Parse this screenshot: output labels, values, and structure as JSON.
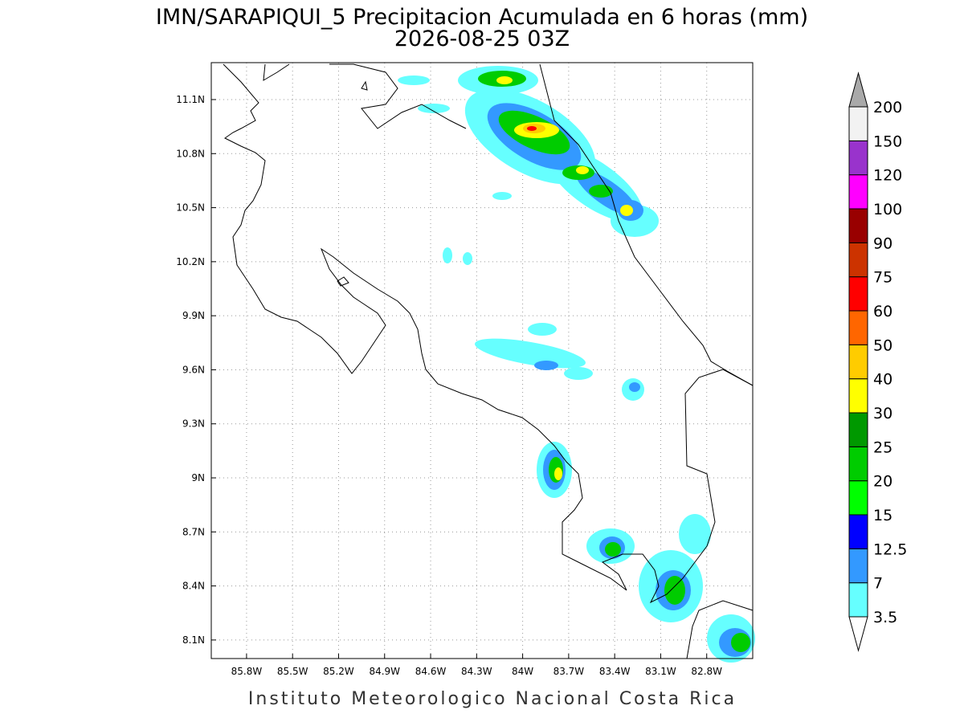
{
  "map": {
    "title": "IMN/SARAPIQUI_5 Precipitacion Acumulada en 6 horas (mm)",
    "subtitle": "2026-08-25 03Z",
    "footer": "Instituto Meteorologico Nacional Costa Rica",
    "xlim": [
      -86.03,
      -82.5
    ],
    "ylim": [
      7.997,
      11.305
    ],
    "xticks": [
      {
        "value": -85.8,
        "label": "85.8W"
      },
      {
        "value": -85.5,
        "label": "85.5W"
      },
      {
        "value": -85.2,
        "label": "85.2W"
      },
      {
        "value": -84.9,
        "label": "84.9W"
      },
      {
        "value": -84.6,
        "label": "84.6W"
      },
      {
        "value": -84.3,
        "label": "84.3W"
      },
      {
        "value": -84.0,
        "label": "84W"
      },
      {
        "value": -83.7,
        "label": "83.7W"
      },
      {
        "value": -83.4,
        "label": "83.4W"
      },
      {
        "value": -83.1,
        "label": "83.1W"
      },
      {
        "value": -82.8,
        "label": "82.8W"
      }
    ],
    "yticks": [
      {
        "value": 8.1,
        "label": "8.1N"
      },
      {
        "value": 8.4,
        "label": "8.4N"
      },
      {
        "value": 8.7,
        "label": "8.7N"
      },
      {
        "value": 9.0,
        "label": "9N"
      },
      {
        "value": 9.3,
        "label": "9.3N"
      },
      {
        "value": 9.6,
        "label": "9.6N"
      },
      {
        "value": 9.9,
        "label": "9.9N"
      },
      {
        "value": 10.2,
        "label": "10.2N"
      },
      {
        "value": 10.5,
        "label": "10.5N"
      },
      {
        "value": 10.8,
        "label": "10.8N"
      },
      {
        "value": 11.1,
        "label": "11.1N"
      }
    ],
    "grid": true,
    "colorbar": {
      "levels": [
        3.5,
        7,
        12.5,
        15,
        20,
        25,
        30,
        40,
        50,
        60,
        75,
        90,
        100,
        120,
        150,
        200
      ],
      "colors": [
        "#ffffff",
        "#66ffff",
        "#3399ff",
        "#0000ff",
        "#00ff00",
        "#00cc00",
        "#009900",
        "#ffff00",
        "#ffcc00",
        "#ff6600",
        "#ff0000",
        "#cc3300",
        "#990000",
        "#ff00ff",
        "#9933cc",
        "#f2f2f2",
        "#a9a9a9"
      ]
    }
  }
}
